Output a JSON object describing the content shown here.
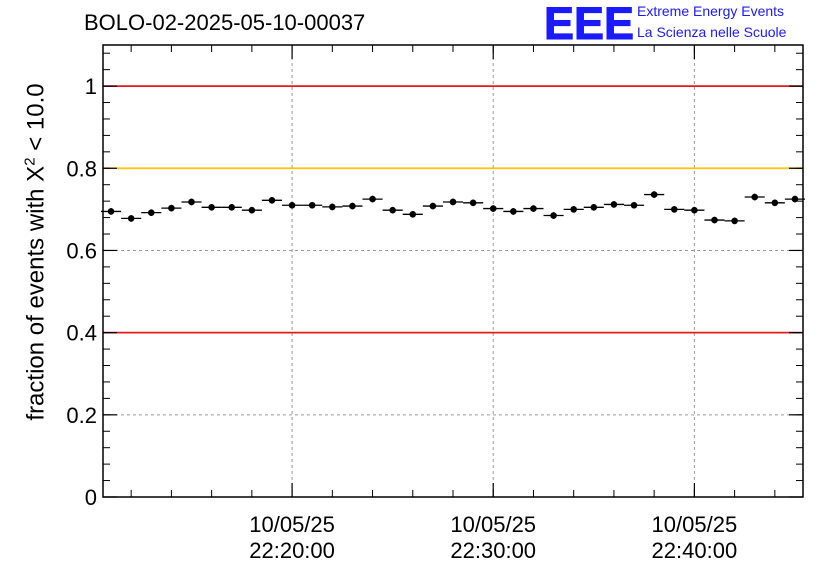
{
  "title": "BOLO-02-2025-05-10-00037",
  "logo": {
    "text": "EEE",
    "line1": "Extreme Energy Events",
    "line2": "La Scienza nelle Scuole",
    "color": "#1a1aff"
  },
  "ylabel": {
    "prefix": "fraction of events with ",
    "chi": "X",
    "sup": "2",
    "suffix": " < 10.0"
  },
  "chart_data": {
    "type": "scatter",
    "title": "BOLO-02-2025-05-10-00037",
    "ylabel": "fraction of events with X^2 < 10.0",
    "xlabel": "",
    "ylim": [
      0,
      1.1
    ],
    "xlim_minutes": [
      10.6,
      45.4
    ],
    "yticks": [
      {
        "v": 0,
        "label": "0"
      },
      {
        "v": 0.2,
        "label": "0.2"
      },
      {
        "v": 0.4,
        "label": "0.4"
      },
      {
        "v": 0.6,
        "label": "0.6"
      },
      {
        "v": 0.8,
        "label": "0.8"
      },
      {
        "v": 1,
        "label": "1"
      }
    ],
    "xticks": [
      {
        "t": 20,
        "date": "10/05/25",
        "time": "22:20:00"
      },
      {
        "t": 30,
        "date": "10/05/25",
        "time": "22:30:00"
      },
      {
        "t": 40,
        "date": "10/05/25",
        "time": "22:40:00"
      }
    ],
    "grid": true,
    "bin_width_minutes": 1,
    "x_minutes": [
      11,
      12,
      13,
      14,
      15,
      16,
      17,
      18,
      19,
      20,
      21,
      22,
      23,
      24,
      25,
      26,
      27,
      28,
      29,
      30,
      31,
      32,
      33,
      34,
      35,
      36,
      37,
      38,
      39,
      40,
      41,
      42,
      43,
      44,
      45
    ],
    "values": [
      0.695,
      0.678,
      0.692,
      0.703,
      0.718,
      0.705,
      0.705,
      0.698,
      0.722,
      0.71,
      0.71,
      0.706,
      0.708,
      0.725,
      0.698,
      0.688,
      0.708,
      0.718,
      0.716,
      0.702,
      0.695,
      0.702,
      0.685,
      0.7,
      0.705,
      0.712,
      0.71,
      0.736,
      0.7,
      0.698,
      0.674,
      0.672,
      0.73,
      0.716,
      0.725
    ],
    "errors": [
      0.008,
      0.008,
      0.008,
      0.008,
      0.008,
      0.008,
      0.008,
      0.008,
      0.008,
      0.008,
      0.008,
      0.008,
      0.008,
      0.008,
      0.008,
      0.008,
      0.008,
      0.008,
      0.008,
      0.008,
      0.008,
      0.008,
      0.008,
      0.008,
      0.008,
      0.008,
      0.008,
      0.008,
      0.008,
      0.008,
      0.008,
      0.008,
      0.008,
      0.008,
      0.008
    ],
    "reference_lines": [
      {
        "y": 1.0,
        "color": "#e01b1b"
      },
      {
        "y": 0.8,
        "color": "#ffc400"
      },
      {
        "y": 0.4,
        "color": "#e01b1b"
      }
    ]
  }
}
